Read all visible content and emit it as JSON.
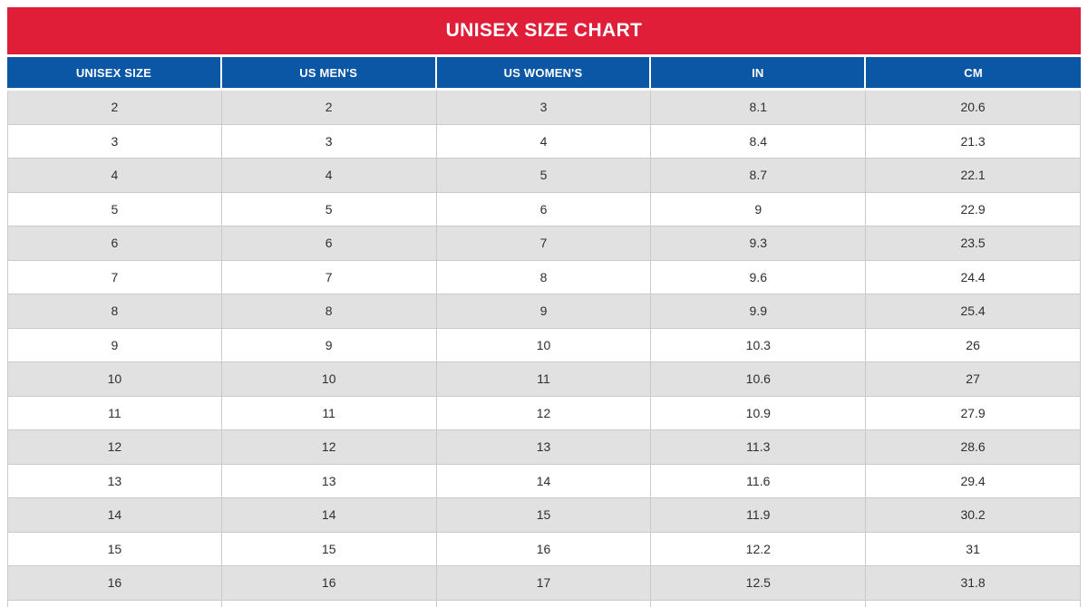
{
  "title": "UNISEX SIZE CHART",
  "colors": {
    "banner_red": "#E01E37",
    "header_blue": "#0C57A5",
    "row_alt_gray": "#E1E1E1",
    "row_white": "#FFFFFF",
    "border_gray": "#CACACA",
    "header_text": "#FFFFFF",
    "cell_text": "#2F2F2F"
  },
  "chart_data": {
    "type": "table",
    "title": "UNISEX SIZE CHART",
    "columns": [
      "UNISEX SIZE",
      "US MEN'S",
      "US WOMEN'S",
      "IN",
      "CM"
    ],
    "rows": [
      [
        2,
        2,
        3,
        8.1,
        20.6
      ],
      [
        3,
        3,
        4,
        8.4,
        21.3
      ],
      [
        4,
        4,
        5,
        8.7,
        22.1
      ],
      [
        5,
        5,
        6,
        9,
        22.9
      ],
      [
        6,
        6,
        7,
        9.3,
        23.5
      ],
      [
        7,
        7,
        8,
        9.6,
        24.4
      ],
      [
        8,
        8,
        9,
        9.9,
        25.4
      ],
      [
        9,
        9,
        10,
        10.3,
        26
      ],
      [
        10,
        10,
        11,
        10.6,
        27
      ],
      [
        11,
        11,
        12,
        10.9,
        27.9
      ],
      [
        12,
        12,
        13,
        11.3,
        28.6
      ],
      [
        13,
        13,
        14,
        11.6,
        29.4
      ],
      [
        14,
        14,
        15,
        11.9,
        30.2
      ],
      [
        15,
        15,
        16,
        12.2,
        31
      ],
      [
        16,
        16,
        17,
        12.5,
        31.8
      ]
    ]
  }
}
